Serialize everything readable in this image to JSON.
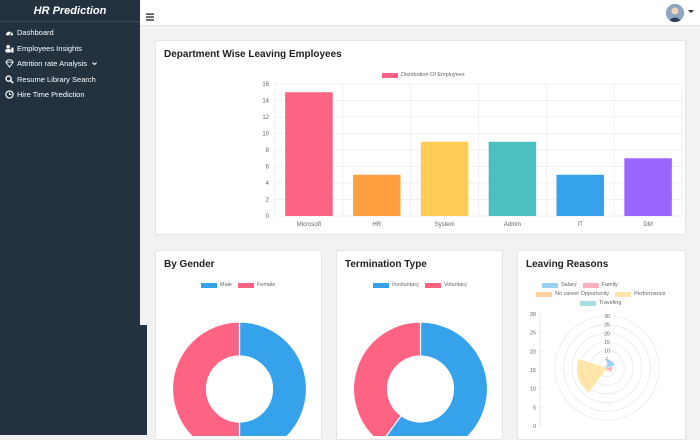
{
  "sidebar": {
    "brand": "HR Prediction",
    "items": [
      {
        "label": "Dashboard",
        "icon": "dashboard-icon"
      },
      {
        "label": "Employees Insights",
        "icon": "users-icon"
      },
      {
        "label": "Attrition rate Analysis",
        "icon": "diamond-icon"
      },
      {
        "label": "Resume Library Search",
        "icon": "search-icon"
      },
      {
        "label": "Hire Time Prediction",
        "icon": "clock-icon"
      }
    ]
  },
  "colors": {
    "pink": "#ff6384",
    "orange": "#ff9f40",
    "yellow": "#ffcd56",
    "teal": "#4bc0c0",
    "blue": "#36a2eb",
    "purple": "#9966ff"
  },
  "department": {
    "title": "Department Wise Leaving Employees",
    "chart_data": {
      "type": "bar",
      "categories": [
        "Microsoft",
        "HR",
        "System",
        "Admin",
        "IT",
        "DM"
      ],
      "series": [
        {
          "name": "Distribution Of Employees",
          "values": [
            15,
            5,
            9,
            9,
            5,
            7
          ]
        }
      ],
      "ylim": [
        0,
        16
      ],
      "yticks": [
        0,
        2,
        4,
        6,
        8,
        10,
        12,
        14,
        16
      ],
      "grid": true,
      "legend": "top"
    }
  },
  "gender": {
    "title": "By Gender",
    "chart_data": {
      "type": "pie",
      "categories": [
        "Male",
        "Female"
      ],
      "values": [
        50,
        50
      ],
      "legend": "top"
    }
  },
  "termination": {
    "title": "Termination Type",
    "chart_data": {
      "type": "pie",
      "categories": [
        "Involuntary",
        "Voluntary"
      ],
      "values": [
        60,
        40
      ],
      "legend": "top"
    }
  },
  "reasons": {
    "title": "Leaving Reasons",
    "chart_data": {
      "type": "polar",
      "categories": [
        "Salary",
        "Family",
        "No career Opportunity",
        "Performance",
        "Traveling"
      ],
      "values": [
        3,
        2,
        1,
        11,
        1
      ],
      "rticks": [
        0,
        5,
        10,
        15,
        20,
        25,
        30
      ],
      "yticks": [
        0,
        5,
        10,
        15,
        20,
        25,
        30
      ],
      "legend": "top"
    }
  }
}
